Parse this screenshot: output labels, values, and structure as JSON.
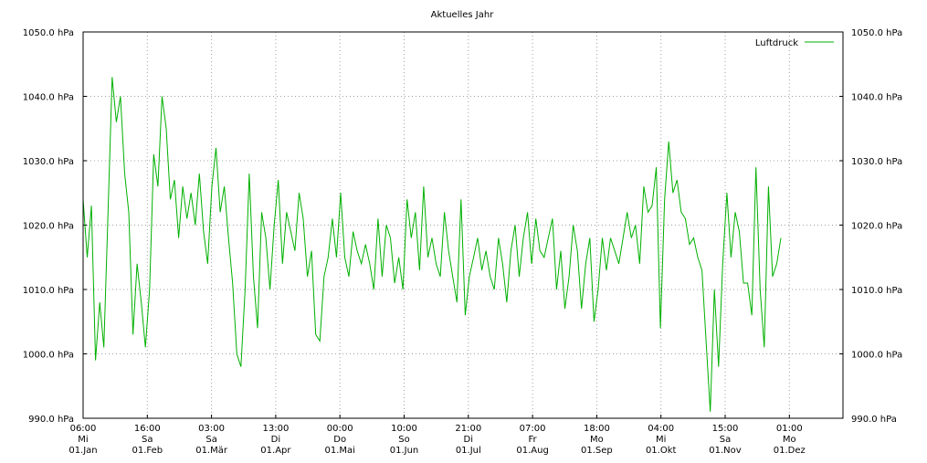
{
  "chart_data": {
    "type": "line",
    "title": "Aktuelles Jahr",
    "y_unit": "hPa",
    "ylim": [
      990,
      1050
    ],
    "y_ticks": [
      "990.0 hPa",
      "1000.0 hPa",
      "1010.0 hPa",
      "1020.0 hPa",
      "1030.0 hPa",
      "1040.0 hPa",
      "1050.0 hPa"
    ],
    "x_ticks": [
      {
        "time": "06:00",
        "day": "Mi",
        "date": "01.Jan"
      },
      {
        "time": "16:00",
        "day": "Sa",
        "date": "01.Feb"
      },
      {
        "time": "03:00",
        "day": "Sa",
        "date": "01.Mär"
      },
      {
        "time": "13:00",
        "day": "Di",
        "date": "01.Apr"
      },
      {
        "time": "00:00",
        "day": "Do",
        "date": "01.Mai"
      },
      {
        "time": "10:00",
        "day": "So",
        "date": "01.Jun"
      },
      {
        "time": "21:00",
        "day": "Di",
        "date": "01.Jul"
      },
      {
        "time": "07:00",
        "day": "Fr",
        "date": "01.Aug"
      },
      {
        "time": "18:00",
        "day": "Mo",
        "date": "01.Sep"
      },
      {
        "time": "04:00",
        "day": "Mi",
        "date": "01.Okt"
      },
      {
        "time": "15:00",
        "day": "Sa",
        "date": "01.Nov"
      },
      {
        "time": "01:00",
        "day": "Mo",
        "date": "01.Dez"
      }
    ],
    "grid": true,
    "legend": "top-right",
    "colors": {
      "series": "#00b000",
      "grid": "#a0a0a0"
    },
    "series": [
      {
        "name": "Luftdruck",
        "x": [
          "01.Jan",
          "03.Jan",
          "05.Jan",
          "07.Jan",
          "09.Jan",
          "11.Jan",
          "13.Jan",
          "15.Jan",
          "17.Jan",
          "19.Jan",
          "21.Jan",
          "23.Jan",
          "25.Jan",
          "27.Jan",
          "29.Jan",
          "31.Jan",
          "02.Feb",
          "04.Feb",
          "06.Feb",
          "08.Feb",
          "10.Feb",
          "12.Feb",
          "14.Feb",
          "16.Feb",
          "18.Feb",
          "20.Feb",
          "22.Feb",
          "24.Feb",
          "26.Feb",
          "28.Feb",
          "02.Mär",
          "04.Mär",
          "06.Mär",
          "08.Mär",
          "10.Mär",
          "12.Mär",
          "14.Mär",
          "16.Mär",
          "18.Mär",
          "20.Mär",
          "22.Mär",
          "24.Mär",
          "26.Mär",
          "28.Mär",
          "30.Mär",
          "01.Apr",
          "03.Apr",
          "05.Apr",
          "07.Apr",
          "09.Apr",
          "11.Apr",
          "13.Apr",
          "15.Apr",
          "17.Apr",
          "19.Apr",
          "21.Apr",
          "23.Apr",
          "25.Apr",
          "27.Apr",
          "29.Apr",
          "01.Mai",
          "03.Mai",
          "05.Mai",
          "07.Mai",
          "09.Mai",
          "11.Mai",
          "13.Mai",
          "15.Mai",
          "17.Mai",
          "19.Mai",
          "21.Mai",
          "23.Mai",
          "25.Mai",
          "27.Mai",
          "29.Mai",
          "31.Mai",
          "02.Jun",
          "04.Jun",
          "06.Jun",
          "08.Jun",
          "10.Jun",
          "12.Jun",
          "14.Jun",
          "16.Jun",
          "18.Jun",
          "20.Jun",
          "22.Jun",
          "24.Jun",
          "26.Jun",
          "28.Jun",
          "30.Jun",
          "02.Jul",
          "04.Jul",
          "06.Jul",
          "08.Jul",
          "10.Jul",
          "12.Jul",
          "14.Jul",
          "16.Jul",
          "18.Jul",
          "20.Jul",
          "22.Jul",
          "24.Jul",
          "26.Jul",
          "28.Jul",
          "30.Jul",
          "01.Aug",
          "03.Aug",
          "05.Aug",
          "07.Aug",
          "09.Aug",
          "11.Aug",
          "13.Aug",
          "15.Aug",
          "17.Aug",
          "19.Aug",
          "21.Aug",
          "23.Aug",
          "25.Aug",
          "27.Aug",
          "29.Aug",
          "31.Aug",
          "02.Sep",
          "04.Sep",
          "06.Sep",
          "08.Sep",
          "10.Sep",
          "12.Sep",
          "14.Sep",
          "16.Sep",
          "18.Sep",
          "20.Sep",
          "22.Sep",
          "24.Sep",
          "26.Sep",
          "28.Sep",
          "30.Sep",
          "02.Okt",
          "04.Okt",
          "06.Okt",
          "08.Okt",
          "10.Okt",
          "12.Okt",
          "14.Okt",
          "16.Okt",
          "18.Okt",
          "20.Okt",
          "22.Okt",
          "24.Okt",
          "26.Okt",
          "28.Okt",
          "30.Okt",
          "01.Nov",
          "03.Nov",
          "05.Nov",
          "07.Nov",
          "09.Nov",
          "11.Nov",
          "13.Nov",
          "15.Nov",
          "17.Nov",
          "19.Nov",
          "21.Nov",
          "23.Nov",
          "25.Nov",
          "27.Nov",
          "29.Nov",
          "01.Dez",
          "03.Dez"
        ],
        "values": [
          1024,
          1015,
          1023,
          999,
          1008,
          1001,
          1022,
          1043,
          1036,
          1040,
          1028,
          1022,
          1003,
          1014,
          1008,
          1001,
          1010,
          1031,
          1026,
          1040,
          1035,
          1024,
          1027,
          1018,
          1026,
          1021,
          1025,
          1020,
          1028,
          1019,
          1014,
          1026,
          1032,
          1022,
          1026,
          1018,
          1011,
          1000,
          998,
          1010,
          1028,
          1012,
          1004,
          1022,
          1018,
          1010,
          1020,
          1027,
          1014,
          1022,
          1019,
          1016,
          1025,
          1021,
          1012,
          1016,
          1003,
          1002,
          1012,
          1015,
          1021,
          1015,
          1025,
          1015,
          1012,
          1019,
          1016,
          1014,
          1017,
          1014,
          1010,
          1021,
          1012,
          1020,
          1018,
          1011,
          1015,
          1010,
          1024,
          1018,
          1022,
          1013,
          1026,
          1015,
          1018,
          1014,
          1012,
          1022,
          1016,
          1012,
          1008,
          1024,
          1006,
          1012,
          1015,
          1018,
          1013,
          1016,
          1012,
          1010,
          1018,
          1014,
          1008,
          1016,
          1020,
          1012,
          1018,
          1022,
          1014,
          1021,
          1016,
          1015,
          1018,
          1021,
          1010,
          1016,
          1007,
          1012,
          1020,
          1016,
          1007,
          1014,
          1018,
          1005,
          1010,
          1018,
          1013,
          1018,
          1016,
          1014,
          1018,
          1022,
          1018,
          1020,
          1014,
          1026,
          1022,
          1023,
          1029,
          1004,
          1024,
          1033,
          1025,
          1027,
          1022,
          1021,
          1017,
          1018,
          1015,
          1013,
          1002,
          991,
          1010,
          998,
          1014,
          1025,
          1015,
          1022,
          1019,
          1011,
          1011,
          1006,
          1029,
          1010,
          1001,
          1026,
          1012,
          1014,
          1018
        ]
      }
    ]
  }
}
